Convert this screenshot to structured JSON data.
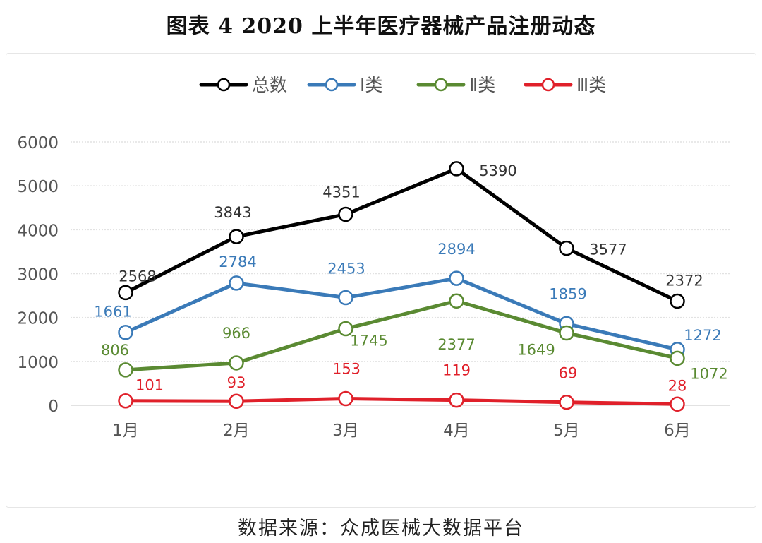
{
  "chart_data": {
    "type": "line",
    "title": "图表 4   2020 上半年医疗器械产品注册动态",
    "categories": [
      "1月",
      "2月",
      "3月",
      "4月",
      "5月",
      "6月"
    ],
    "series": [
      {
        "name": "总数",
        "color": "#000000",
        "values": [
          2568,
          3843,
          4351,
          5390,
          3577,
          2372
        ]
      },
      {
        "name": "Ⅰ类",
        "color": "#3a7ab8",
        "values": [
          1661,
          2784,
          2453,
          2894,
          1859,
          1272
        ]
      },
      {
        "name": "Ⅱ类",
        "color": "#5a8a32",
        "values": [
          806,
          966,
          1745,
          2377,
          1649,
          1072
        ]
      },
      {
        "name": "Ⅲ类",
        "color": "#e0202a",
        "values": [
          101,
          93,
          153,
          119,
          69,
          28
        ]
      }
    ],
    "yticks": [
      0,
      1000,
      2000,
      3000,
      4000,
      5000,
      6000
    ],
    "ylim": [
      0,
      6000
    ],
    "xlabel": "",
    "ylabel": "",
    "grid": true,
    "legend_position": "top-center"
  },
  "source": "数据来源：众成医械大数据平台"
}
